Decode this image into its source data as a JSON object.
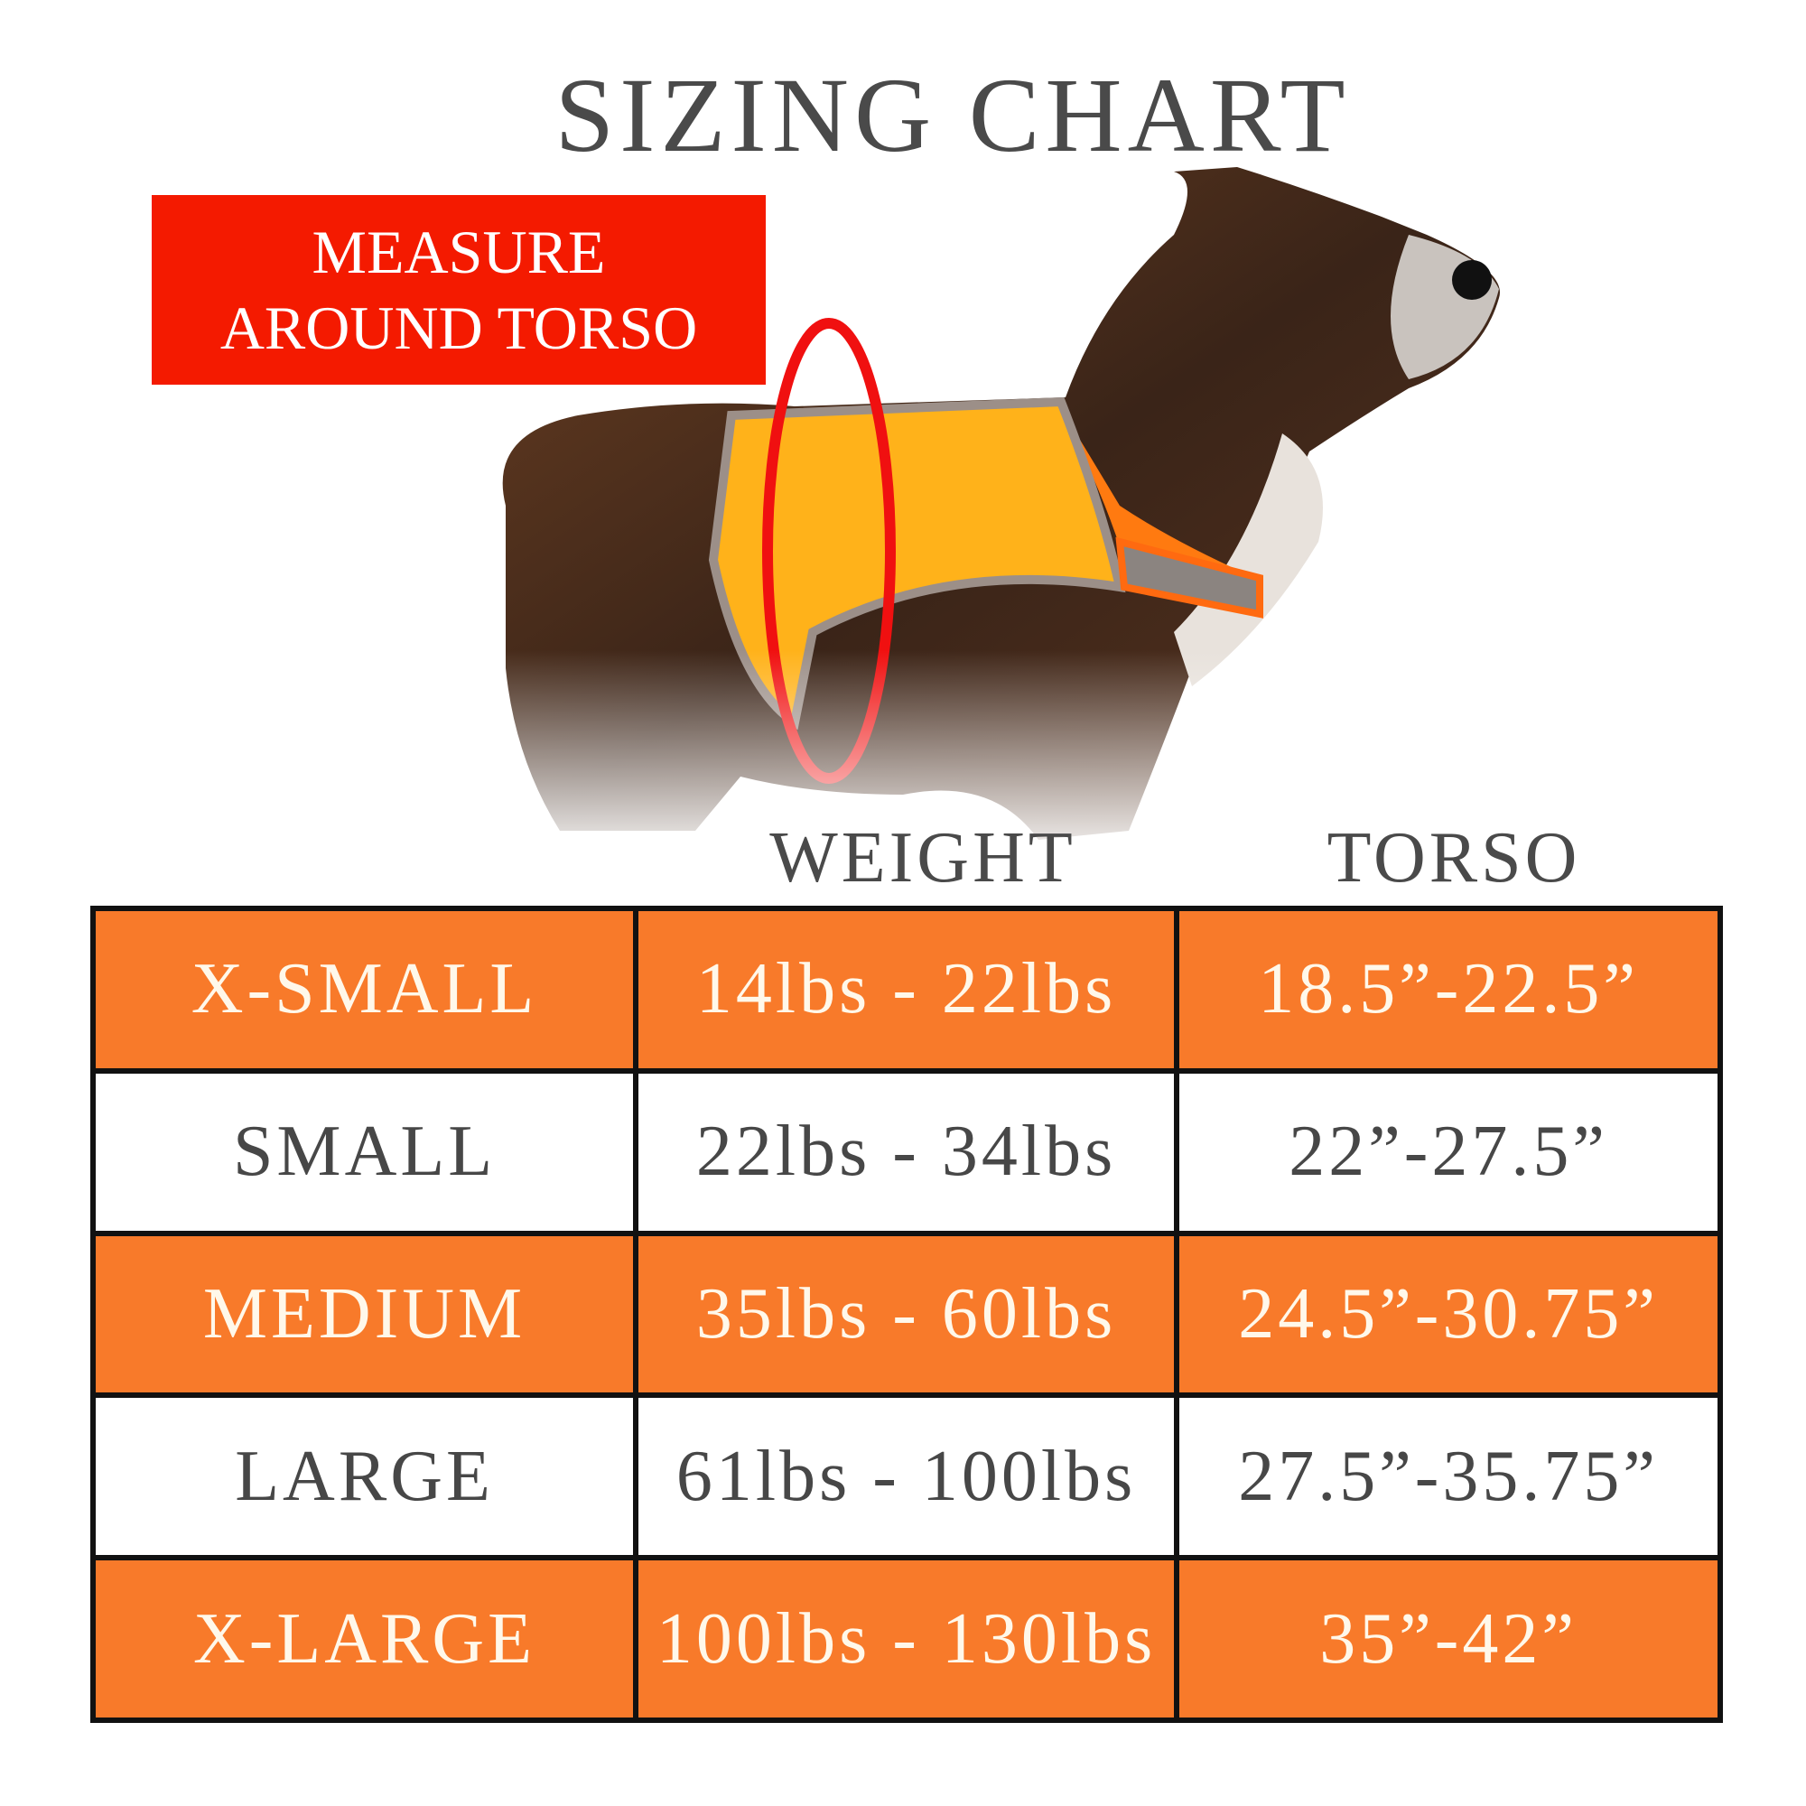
{
  "title": "SIZING CHART",
  "measure": {
    "line1": "MEASURE",
    "line2": "AROUND TORSO"
  },
  "columns": {
    "weight": "WEIGHT",
    "torso": "TORSO"
  },
  "colors": {
    "orange_row": "#f87a2a",
    "white_row": "#ffffff",
    "measure_box": "#f41a00",
    "ring": "#f01010"
  },
  "rows": [
    {
      "size": "X-SMALL",
      "weight": "14lbs - 22lbs",
      "torso": "18.5”-22.5”",
      "style": "orange"
    },
    {
      "size": "SMALL",
      "weight": "22lbs - 34lbs",
      "torso": "22”-27.5”",
      "style": "white"
    },
    {
      "size": "MEDIUM",
      "weight": "35lbs - 60lbs",
      "torso": "24.5”-30.75”",
      "style": "orange"
    },
    {
      "size": "LARGE",
      "weight": "61lbs - 100lbs",
      "torso": "27.5”-35.75”",
      "style": "white"
    },
    {
      "size": "X-LARGE",
      "weight": "100lbs - 130lbs",
      "torso": "35”-42”",
      "style": "orange"
    }
  ]
}
